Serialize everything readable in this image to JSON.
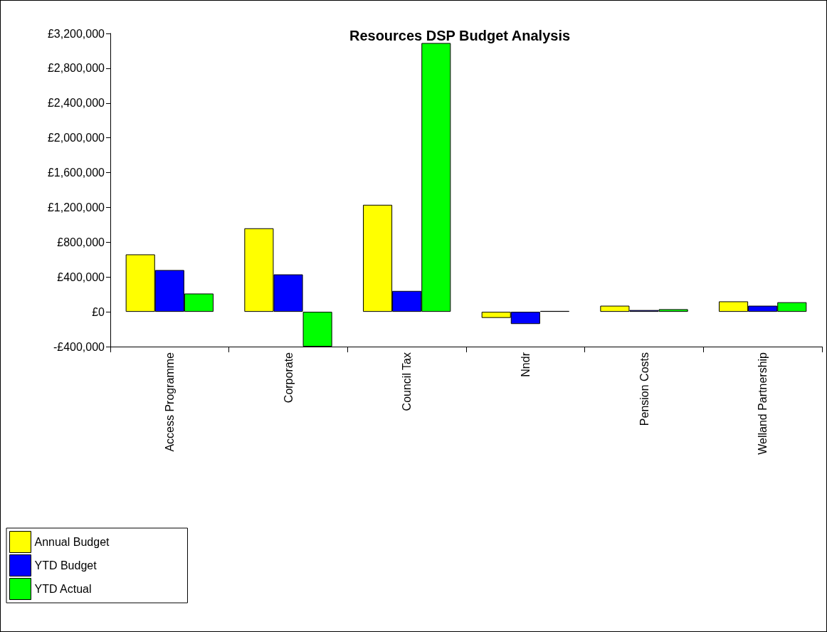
{
  "chart_data": {
    "type": "bar",
    "title": "Resources DSP Budget Analysis",
    "categories": [
      "Access Programme",
      "Corporate",
      "Council Tax",
      "Nndr",
      "Pension Costs",
      "Welland Partnership"
    ],
    "series": [
      {
        "name": "Annual Budget",
        "color": "#ffff00",
        "values": [
          660000,
          960000,
          1230000,
          -70000,
          70000,
          120000
        ]
      },
      {
        "name": "YTD Budget",
        "color": "#0000ff",
        "values": [
          480000,
          430000,
          240000,
          -140000,
          20000,
          70000
        ]
      },
      {
        "name": "YTD Actual",
        "color": "#00ff00",
        "values": [
          210000,
          -400000,
          3090000,
          10000,
          30000,
          110000
        ]
      }
    ],
    "ylim": [
      -400000,
      3200000
    ],
    "yticks": [
      {
        "value": -400000,
        "label": "-£400,000"
      },
      {
        "value": 0,
        "label": "£0"
      },
      {
        "value": 400000,
        "label": "£400,000"
      },
      {
        "value": 800000,
        "label": "£800,000"
      },
      {
        "value": 1200000,
        "label": "£1,200,000"
      },
      {
        "value": 1600000,
        "label": "£1,600,000"
      },
      {
        "value": 2000000,
        "label": "£2,000,000"
      },
      {
        "value": 2400000,
        "label": "£2,400,000"
      },
      {
        "value": 2800000,
        "label": "£2,800,000"
      },
      {
        "value": 3200000,
        "label": "£3,200,000"
      }
    ],
    "grid": false,
    "legend": "bottom left"
  }
}
